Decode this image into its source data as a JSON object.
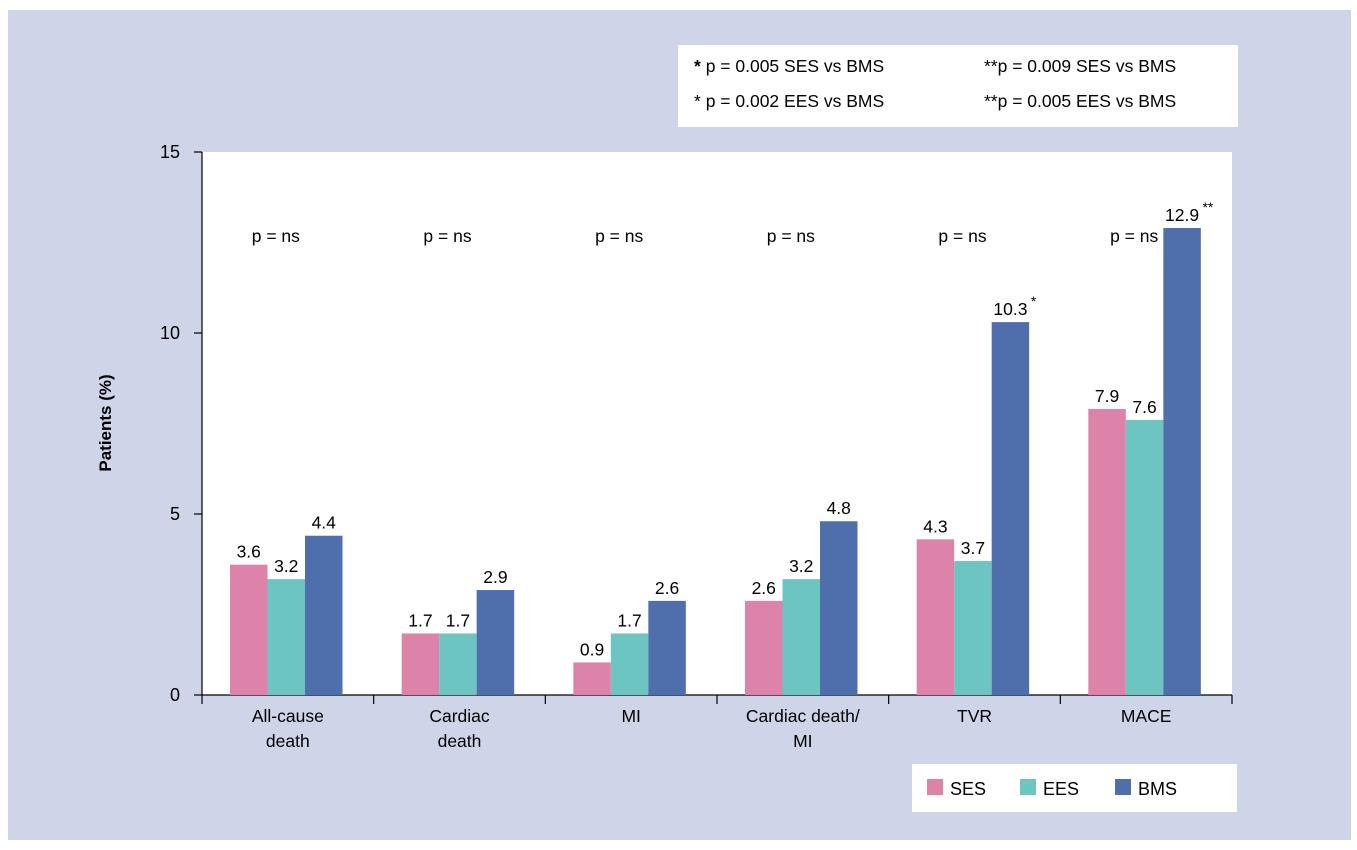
{
  "chart_data": {
    "type": "bar",
    "title": "",
    "xlabel": "",
    "ylabel": "Patients (%)",
    "ylim": [
      0,
      15
    ],
    "yticks": [
      0,
      5,
      10,
      15
    ],
    "categories": [
      [
        "All-cause",
        "death"
      ],
      [
        "Cardiac",
        "death"
      ],
      [
        "MI"
      ],
      [
        "Cardiac death/",
        "MI"
      ],
      [
        "TVR"
      ],
      [
        "MACE"
      ]
    ],
    "series": [
      {
        "name": "SES",
        "color": "#dd82a8",
        "values": [
          3.6,
          1.7,
          0.9,
          2.6,
          4.3,
          7.9
        ]
      },
      {
        "name": "EES",
        "color": "#6cc5c0",
        "values": [
          3.2,
          1.7,
          1.7,
          3.2,
          3.7,
          7.6
        ]
      },
      {
        "name": "BMS",
        "color": "#4f6eac",
        "values": [
          4.4,
          2.9,
          2.6,
          4.8,
          10.3,
          12.9
        ]
      }
    ],
    "value_labels": [
      [
        "3.6",
        "1.7",
        "0.9",
        "2.6",
        "4.3",
        "7.9"
      ],
      [
        "3.2",
        "1.7",
        "1.7",
        "3.2",
        "3.7",
        "7.6"
      ],
      [
        "4.4",
        "2.9",
        "2.6",
        "4.8",
        "10.3",
        "12.9"
      ]
    ],
    "significance_marks": [
      "",
      "",
      "",
      "",
      "*",
      "**"
    ],
    "p_labels": [
      "p = ns",
      "p = ns",
      "p = ns",
      "p = ns",
      "p = ns",
      "p = ns"
    ],
    "legend_position": "bottom-right",
    "grid": false
  },
  "notes": [
    {
      "mark": "*",
      "text": "p = 0.005  SES vs BMS"
    },
    {
      "mark": "**",
      "text": "p = 0.009 SES vs BMS"
    },
    {
      "mark": "*",
      "text": "p = 0.002  EES vs BMS"
    },
    {
      "mark": "**",
      "text": "p = 0.005 EES vs BMS"
    }
  ]
}
